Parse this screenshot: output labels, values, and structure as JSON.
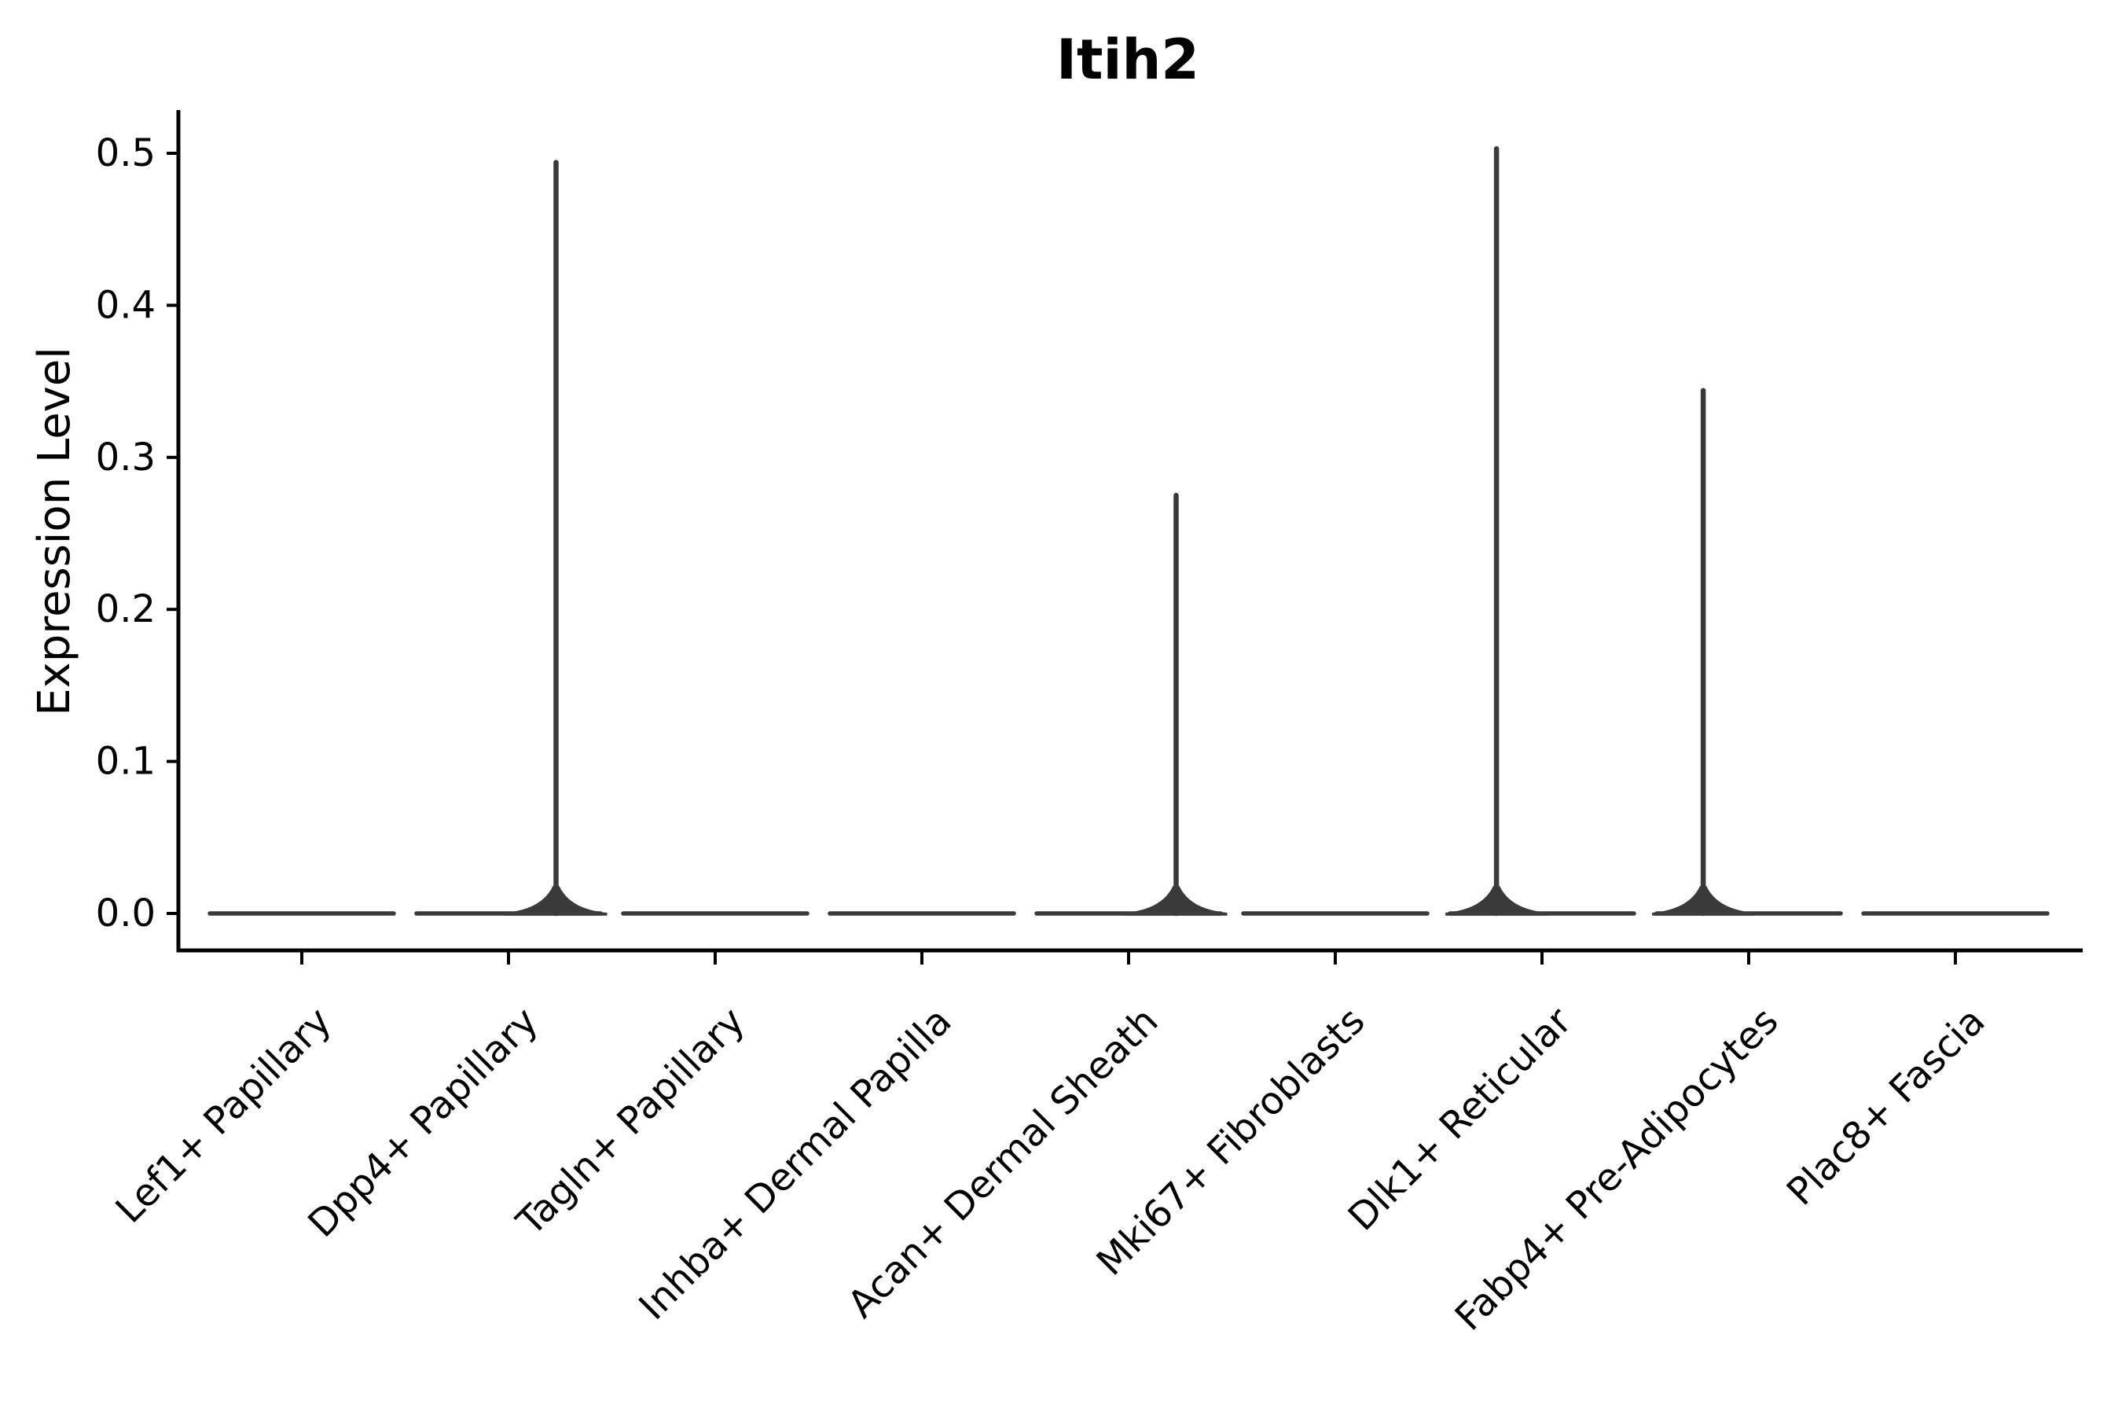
{
  "figure": {
    "title": "Itih2",
    "y_axis_label": "Expression Level",
    "background_color": "#ffffff"
  },
  "chart_data": {
    "type": "violin",
    "title": "Itih2",
    "xlabel": "",
    "ylabel": "Expression Level",
    "grid": false,
    "legend": "none",
    "axis_color": "#000000",
    "violin_color": "#3a3a3a",
    "ylim": [
      -0.025,
      0.53
    ],
    "yticks": [
      0.0,
      0.1,
      0.2,
      0.3,
      0.4,
      0.5
    ],
    "ytick_labels": [
      "0.0",
      "0.1",
      "0.2",
      "0.3",
      "0.4",
      "0.5"
    ],
    "categories": [
      "Lef1+ Papillary",
      "Dpp4+ Papillary",
      "Tagln+ Papillary",
      "Inhba+ Dermal Papilla",
      "Acan+ Dermal Sheath",
      "Mki67+ Fibroblasts",
      "Dlk1+ Reticular",
      "Fabp4+ Pre-Adipocytes",
      "Plac8+ Fascia"
    ],
    "violins": [
      {
        "category": "Lef1+ Papillary",
        "baseline_value": 0.0,
        "max_expression": 0.0,
        "spike": null
      },
      {
        "category": "Dpp4+ Papillary",
        "baseline_value": 0.0,
        "max_expression": 0.494,
        "spike": {
          "value": 0.494,
          "offset_frac": 0.23
        }
      },
      {
        "category": "Tagln+ Papillary",
        "baseline_value": 0.0,
        "max_expression": 0.0,
        "spike": null
      },
      {
        "category": "Inhba+ Dermal Papilla",
        "baseline_value": 0.0,
        "max_expression": 0.0,
        "spike": null
      },
      {
        "category": "Acan+ Dermal Sheath",
        "baseline_value": 0.0,
        "max_expression": 0.275,
        "spike": {
          "value": 0.275,
          "offset_frac": 0.23
        }
      },
      {
        "category": "Mki67+ Fibroblasts",
        "baseline_value": 0.0,
        "max_expression": 0.0,
        "spike": null
      },
      {
        "category": "Dlk1+ Reticular",
        "baseline_value": 0.0,
        "max_expression": 0.503,
        "spike": {
          "value": 0.503,
          "offset_frac": -0.22
        }
      },
      {
        "category": "Fabp4+ Pre-Adipocytes",
        "baseline_value": 0.0,
        "max_expression": 0.344,
        "spike": {
          "value": 0.344,
          "offset_frac": -0.22
        }
      },
      {
        "category": "Plac8+ Fascia",
        "baseline_value": 0.0,
        "max_expression": 0.0,
        "spike": null
      }
    ]
  }
}
